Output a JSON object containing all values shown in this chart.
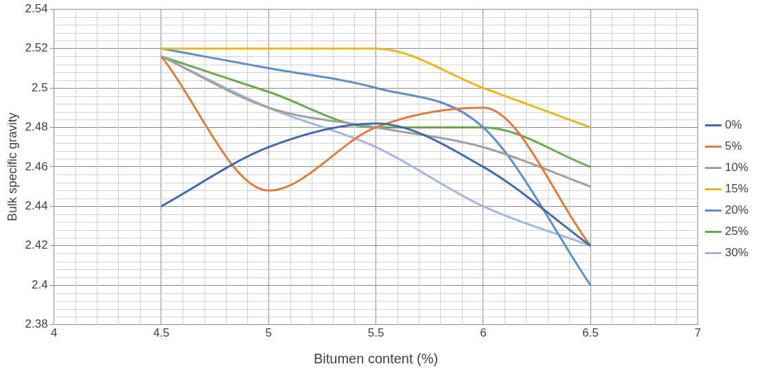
{
  "chart_data": {
    "type": "line",
    "xlabel": "Bitumen content (%)",
    "ylabel": "Bulk specific gravity",
    "x": [
      4.5,
      5,
      5.5,
      6,
      6.5
    ],
    "series": [
      {
        "name": "0%",
        "color": "#4169a8",
        "values": [
          2.44,
          2.47,
          2.482,
          2.46,
          2.42
        ]
      },
      {
        "name": "5%",
        "color": "#e07b39",
        "values": [
          2.516,
          2.448,
          2.48,
          2.49,
          2.42
        ]
      },
      {
        "name": "10%",
        "color": "#a0a0a0",
        "values": [
          2.516,
          2.49,
          2.48,
          2.47,
          2.45
        ]
      },
      {
        "name": "15%",
        "color": "#e8b820",
        "values": [
          2.52,
          2.52,
          2.52,
          2.5,
          2.48
        ]
      },
      {
        "name": "20%",
        "color": "#5b8fc7",
        "values": [
          2.52,
          2.51,
          2.5,
          2.48,
          2.4
        ]
      },
      {
        "name": "25%",
        "color": "#6aa84f",
        "values": [
          2.516,
          2.498,
          2.48,
          2.48,
          2.46
        ]
      },
      {
        "name": "30%",
        "color": "#a4b6e0",
        "values": [
          2.516,
          2.49,
          2.47,
          2.44,
          2.42
        ]
      }
    ],
    "xlim": [
      4,
      7
    ],
    "xticks": [
      4,
      4.5,
      5,
      5.5,
      6,
      6.5,
      7
    ],
    "ylim": [
      2.38,
      2.54
    ],
    "yticks": [
      2.38,
      2.4,
      2.42,
      2.44,
      2.46,
      2.48,
      2.5,
      2.52,
      2.54
    ],
    "grid": true,
    "legend": "right",
    "marker": "none",
    "line_style": "solid"
  }
}
